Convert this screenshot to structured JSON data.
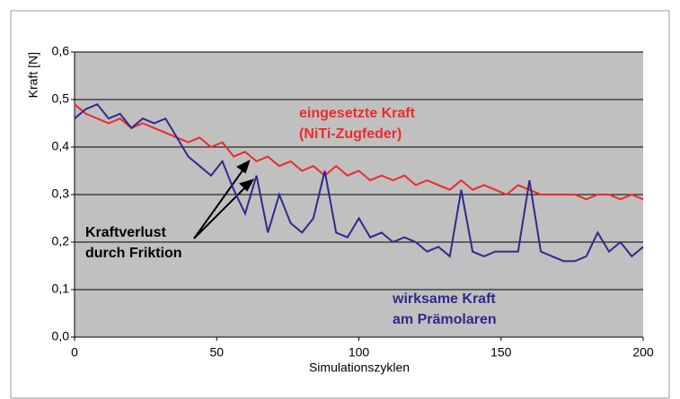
{
  "chart_data": {
    "type": "line",
    "x_label": "Simulationszyklen",
    "y_label": "Kraft [N]",
    "x": [
      0,
      4,
      8,
      12,
      16,
      20,
      24,
      28,
      32,
      36,
      40,
      44,
      48,
      52,
      56,
      60,
      64,
      68,
      72,
      76,
      80,
      84,
      88,
      92,
      96,
      100,
      104,
      108,
      112,
      116,
      120,
      124,
      128,
      132,
      136,
      140,
      144,
      148,
      152,
      156,
      160,
      164,
      168,
      172,
      176,
      180,
      184,
      188,
      192,
      196,
      200
    ],
    "series": [
      {
        "name": "eingesetzte Kraft (NiTi-Zugfeder)",
        "color": "#ee2a2a",
        "values": [
          0.49,
          0.47,
          0.46,
          0.45,
          0.46,
          0.44,
          0.45,
          0.44,
          0.43,
          0.42,
          0.41,
          0.42,
          0.4,
          0.41,
          0.38,
          0.39,
          0.37,
          0.38,
          0.36,
          0.37,
          0.35,
          0.36,
          0.34,
          0.36,
          0.34,
          0.35,
          0.33,
          0.34,
          0.33,
          0.34,
          0.32,
          0.33,
          0.32,
          0.31,
          0.33,
          0.31,
          0.32,
          0.31,
          0.3,
          0.32,
          0.31,
          0.3,
          0.3,
          0.3,
          0.3,
          0.29,
          0.3,
          0.3,
          0.29,
          0.3,
          0.29
        ]
      },
      {
        "name": "wirksame Kraft am Prämolaren",
        "color": "#2e2b8c",
        "values": [
          0.46,
          0.48,
          0.49,
          0.46,
          0.47,
          0.44,
          0.46,
          0.45,
          0.46,
          0.42,
          0.38,
          0.36,
          0.34,
          0.37,
          0.31,
          0.26,
          0.34,
          0.22,
          0.3,
          0.24,
          0.22,
          0.25,
          0.35,
          0.22,
          0.21,
          0.25,
          0.21,
          0.22,
          0.2,
          0.21,
          0.2,
          0.18,
          0.19,
          0.17,
          0.31,
          0.18,
          0.17,
          0.18,
          0.18,
          0.18,
          0.33,
          0.18,
          0.17,
          0.16,
          0.16,
          0.17,
          0.22,
          0.18,
          0.2,
          0.17,
          0.19
        ]
      }
    ],
    "xlim": [
      0,
      200
    ],
    "xticks": [
      0,
      50,
      100,
      150,
      200
    ],
    "ylim": [
      0,
      0.6
    ],
    "yticks": [
      {
        "value": 0,
        "label": "0,0"
      },
      {
        "value": 0.1,
        "label": "0,1"
      },
      {
        "value": 0.2,
        "label": "0,2"
      },
      {
        "value": 0.3,
        "label": "0,3"
      },
      {
        "value": 0.4,
        "label": "0,4"
      },
      {
        "value": 0.5,
        "label": "0,5"
      },
      {
        "value": 0.6,
        "label": "0,6"
      }
    ],
    "grid": true,
    "annotations": [
      {
        "lines": [
          "eingesetzte Kraft",
          "(NiTi-Zugfeder)"
        ],
        "color": "#ee2a2a"
      },
      {
        "lines": [
          "wirksame Kraft",
          "am Prämolaren"
        ],
        "color": "#2e2b8c"
      },
      {
        "lines": [
          "Kraftverlust",
          "durch Friktion"
        ],
        "color": "#000000"
      }
    ]
  }
}
